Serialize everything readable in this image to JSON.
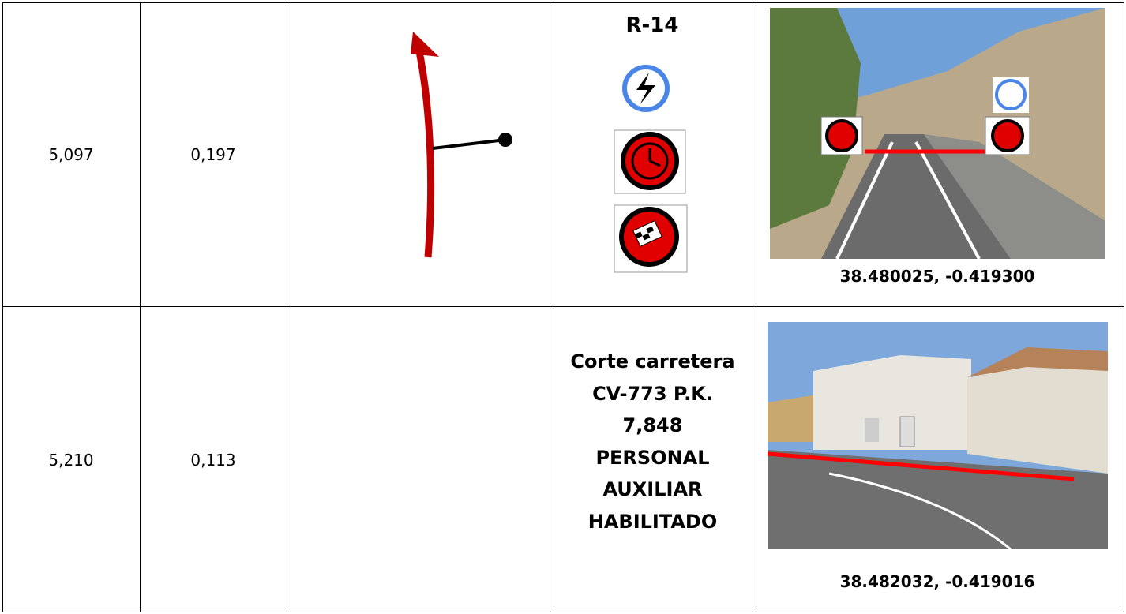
{
  "table": {
    "rows": [
      {
        "pk": "5,097",
        "distance": "0,197",
        "sign": [
          "R-14"
        ],
        "coords": "38.480025, -0.419300"
      },
      {
        "pk": "5,210",
        "distance": "0,113",
        "sign": [
          "Corte carretera",
          "CV-773 P.K.",
          "7,848",
          "PERSONAL",
          "AUXILIAR",
          "HABILITADO"
        ],
        "coords": "38.482032, -0.419016"
      }
    ]
  }
}
